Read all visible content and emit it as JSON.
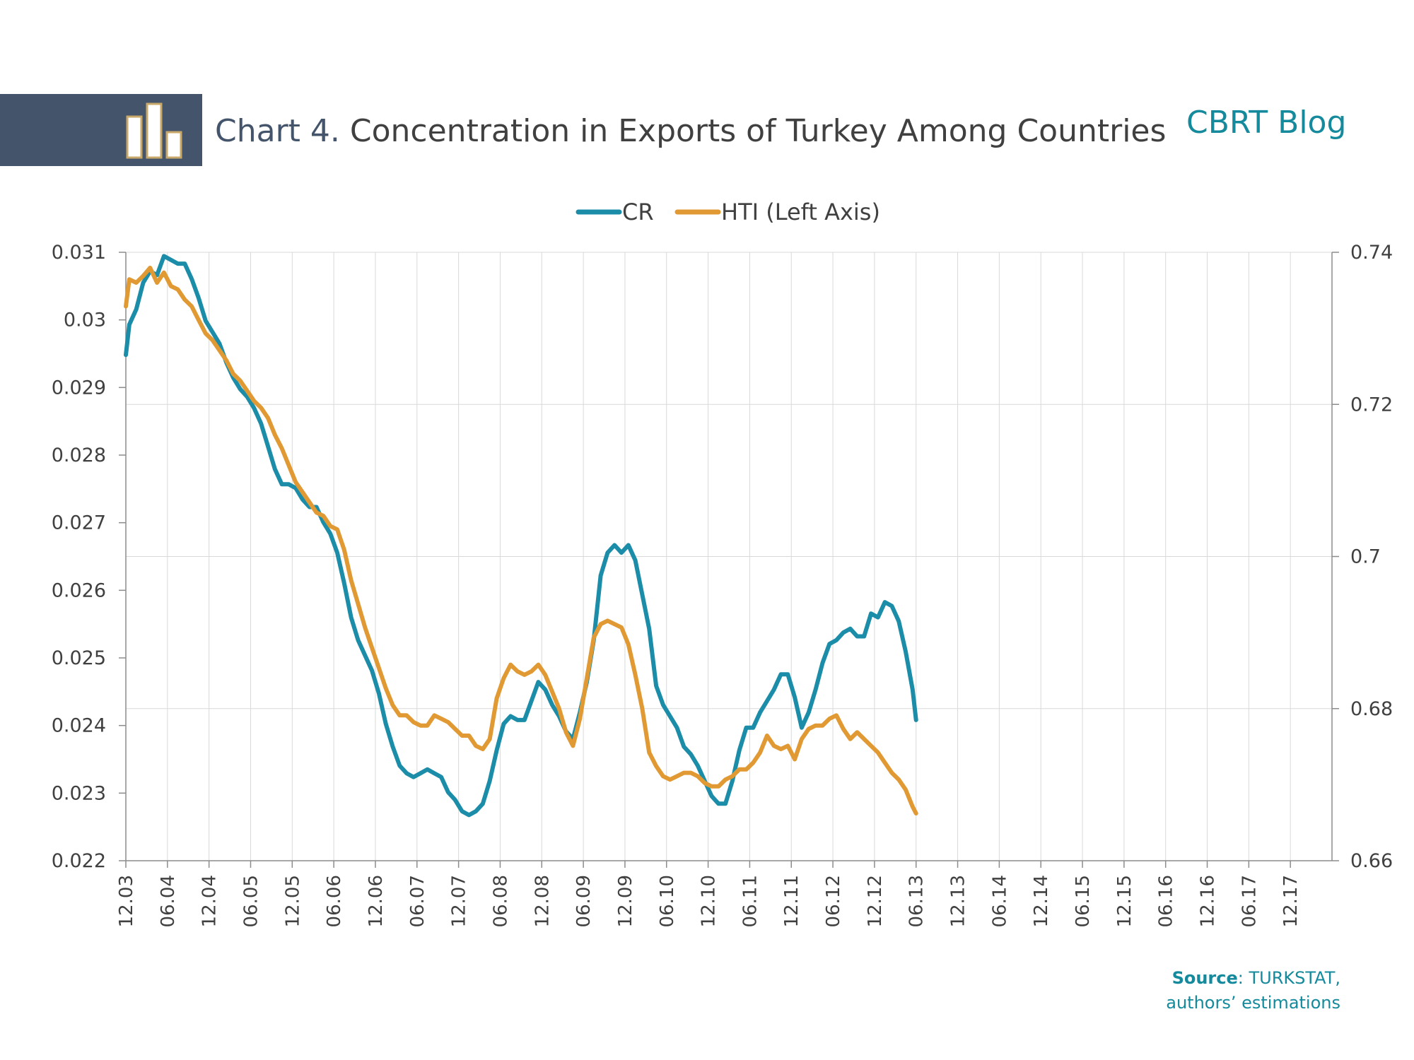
{
  "header": {
    "chart_number": "Chart 4.",
    "title": "Concentration in Exports of Turkey Among Countries",
    "brand": "CBRT Blog"
  },
  "source": {
    "label": "Source",
    "text": ": TURKSTAT,",
    "text2": "authors’ estimations"
  },
  "colors": {
    "cr": "#1b8da8",
    "hti": "#e19a33",
    "header_band": "#44546a",
    "brand": "#148a9c"
  },
  "chart_data": {
    "type": "line",
    "legend": [
      "CR",
      "HTI (Left Axis)"
    ],
    "legend_position": "top",
    "grid": {
      "vertical": true,
      "horizontal": true
    },
    "x_ticks": [
      "12.03",
      "06.04",
      "12.04",
      "06.05",
      "12.05",
      "06.06",
      "12.06",
      "06.07",
      "12.07",
      "06.08",
      "12.08",
      "06.09",
      "12.09",
      "06.10",
      "12.10",
      "06.11",
      "12.11",
      "06.12",
      "12.12",
      "06.13",
      "12.13",
      "06.14",
      "12.14",
      "06.15",
      "12.15",
      "06.16",
      "12.16",
      "06.17",
      "12.17"
    ],
    "y_left": {
      "lim": [
        0.022,
        0.031
      ],
      "ticks": [
        "0.022",
        "0.023",
        "0.024",
        "0.025",
        "0.026",
        "0.027",
        "0.028",
        "0.029",
        "0.03",
        "0.031"
      ]
    },
    "y_right": {
      "lim": [
        0.66,
        0.74
      ],
      "ticks": [
        "0.66",
        "0.68",
        "0.7",
        "0.72",
        "0.74"
      ]
    },
    "series": [
      {
        "name": "CR",
        "axis": "right",
        "points": [
          [
            0,
            0.7265
          ],
          [
            0.5,
            0.7305
          ],
          [
            1.5,
            0.7325
          ],
          [
            2.5,
            0.736
          ],
          [
            3.5,
            0.7375
          ],
          [
            4.5,
            0.737
          ],
          [
            5.5,
            0.7395
          ],
          [
            6.5,
            0.739
          ],
          [
            7.5,
            0.7385
          ],
          [
            8.5,
            0.7385
          ],
          [
            9.5,
            0.7365
          ],
          [
            10.5,
            0.734
          ],
          [
            11.5,
            0.731
          ],
          [
            12.5,
            0.7295
          ],
          [
            13.5,
            0.728
          ],
          [
            14.5,
            0.7255
          ],
          [
            15.5,
            0.7235
          ],
          [
            16.5,
            0.722
          ],
          [
            17.5,
            0.721
          ],
          [
            18.5,
            0.7195
          ],
          [
            19.5,
            0.7175
          ],
          [
            20.5,
            0.7145
          ],
          [
            21.5,
            0.7115
          ],
          [
            22.5,
            0.7095
          ],
          [
            23.5,
            0.7095
          ],
          [
            24.5,
            0.709
          ],
          [
            25.5,
            0.7075
          ],
          [
            26.5,
            0.7065
          ],
          [
            27.5,
            0.7065
          ],
          [
            28.5,
            0.7045
          ],
          [
            29.5,
            0.703
          ],
          [
            30.5,
            0.7005
          ],
          [
            31.5,
            0.6965
          ],
          [
            32.5,
            0.692
          ],
          [
            33.5,
            0.689
          ],
          [
            34.5,
            0.687
          ],
          [
            35.5,
            0.685
          ],
          [
            36.5,
            0.682
          ],
          [
            37.5,
            0.678
          ],
          [
            38.5,
            0.675
          ],
          [
            39.5,
            0.6725
          ],
          [
            40.5,
            0.6715
          ],
          [
            41.5,
            0.671
          ],
          [
            42.5,
            0.6715
          ],
          [
            43.5,
            0.672
          ],
          [
            44.5,
            0.6715
          ],
          [
            45.5,
            0.671
          ],
          [
            46.5,
            0.669
          ],
          [
            47.5,
            0.668
          ],
          [
            48.5,
            0.6665
          ],
          [
            49.5,
            0.666
          ],
          [
            50.5,
            0.6665
          ],
          [
            51.5,
            0.6675
          ],
          [
            52.5,
            0.6705
          ],
          [
            53.5,
            0.6745
          ],
          [
            54.5,
            0.678
          ],
          [
            55.5,
            0.679
          ],
          [
            56.5,
            0.6785
          ],
          [
            57.5,
            0.6785
          ],
          [
            58.5,
            0.681
          ],
          [
            59.5,
            0.6835
          ],
          [
            60.5,
            0.6825
          ],
          [
            61.5,
            0.6805
          ],
          [
            62.5,
            0.679
          ],
          [
            63.5,
            0.677
          ],
          [
            64.5,
            0.676
          ],
          [
            65.5,
            0.6795
          ],
          [
            66.5,
            0.6835
          ],
          [
            67.5,
            0.689
          ],
          [
            68.5,
            0.6975
          ],
          [
            69.5,
            0.7005
          ],
          [
            70.5,
            0.7015
          ],
          [
            71.5,
            0.7005
          ],
          [
            72.5,
            0.7015
          ],
          [
            73.5,
            0.6995
          ],
          [
            74.5,
            0.695
          ],
          [
            75.5,
            0.6905
          ],
          [
            76.5,
            0.683
          ],
          [
            77.5,
            0.6805
          ],
          [
            78.5,
            0.679
          ],
          [
            79.5,
            0.6775
          ],
          [
            80.5,
            0.675
          ],
          [
            81.5,
            0.674
          ],
          [
            82.5,
            0.6725
          ],
          [
            83.5,
            0.6705
          ],
          [
            84.5,
            0.6685
          ],
          [
            85.5,
            0.6675
          ],
          [
            86.5,
            0.6675
          ],
          [
            87.5,
            0.6705
          ],
          [
            88.5,
            0.6745
          ],
          [
            89.5,
            0.6775
          ],
          [
            90.5,
            0.6775
          ],
          [
            91.5,
            0.6795
          ],
          [
            92.5,
            0.681
          ],
          [
            93.5,
            0.6825
          ],
          [
            94.5,
            0.6845
          ],
          [
            95.5,
            0.6845
          ],
          [
            96.5,
            0.6815
          ],
          [
            97.5,
            0.6775
          ],
          [
            98.5,
            0.6795
          ],
          [
            99.5,
            0.6825
          ],
          [
            100.5,
            0.686
          ],
          [
            101.5,
            0.6885
          ],
          [
            102.5,
            0.689
          ],
          [
            103.5,
            0.69
          ],
          [
            104.5,
            0.6905
          ],
          [
            105.5,
            0.6895
          ],
          [
            106.5,
            0.6895
          ],
          [
            107.5,
            0.6925
          ],
          [
            108.5,
            0.692
          ],
          [
            109.5,
            0.694
          ],
          [
            110.5,
            0.6935
          ],
          [
            111.5,
            0.6915
          ],
          [
            112.5,
            0.6875
          ],
          [
            113.5,
            0.6825
          ],
          [
            114,
            0.6785
          ]
        ]
      },
      {
        "name": "HTI (Left Axis)",
        "axis": "left",
        "points": [
          [
            0,
            0.0302
          ],
          [
            0.5,
            0.0306
          ],
          [
            1.5,
            0.03055
          ],
          [
            2.5,
            0.03065
          ],
          [
            3.5,
            0.03077
          ],
          [
            4.5,
            0.03055
          ],
          [
            5.5,
            0.0307
          ],
          [
            6.5,
            0.0305
          ],
          [
            7.5,
            0.03045
          ],
          [
            8.5,
            0.0303
          ],
          [
            9.5,
            0.0302
          ],
          [
            10.5,
            0.03
          ],
          [
            11.5,
            0.0298
          ],
          [
            12.5,
            0.0297
          ],
          [
            13.5,
            0.02955
          ],
          [
            14.5,
            0.0294
          ],
          [
            15.5,
            0.0292
          ],
          [
            16.5,
            0.0291
          ],
          [
            17.5,
            0.02895
          ],
          [
            18.5,
            0.0288
          ],
          [
            19.5,
            0.0287
          ],
          [
            20.5,
            0.02855
          ],
          [
            21.5,
            0.0283
          ],
          [
            22.5,
            0.0281
          ],
          [
            23.5,
            0.02785
          ],
          [
            24.5,
            0.0276
          ],
          [
            25.5,
            0.02745
          ],
          [
            26.5,
            0.0273
          ],
          [
            27.5,
            0.02715
          ],
          [
            28.5,
            0.0271
          ],
          [
            29.5,
            0.02695
          ],
          [
            30.5,
            0.0269
          ],
          [
            31.5,
            0.0266
          ],
          [
            32.5,
            0.02615
          ],
          [
            33.5,
            0.0258
          ],
          [
            34.5,
            0.02545
          ],
          [
            35.5,
            0.02515
          ],
          [
            36.5,
            0.02485
          ],
          [
            37.5,
            0.02455
          ],
          [
            38.5,
            0.0243
          ],
          [
            39.5,
            0.02415
          ],
          [
            40.5,
            0.02415
          ],
          [
            41.5,
            0.02405
          ],
          [
            42.5,
            0.024
          ],
          [
            43.5,
            0.024
          ],
          [
            44.5,
            0.02415
          ],
          [
            45.5,
            0.0241
          ],
          [
            46.5,
            0.02405
          ],
          [
            47.5,
            0.02395
          ],
          [
            48.5,
            0.02385
          ],
          [
            49.5,
            0.02385
          ],
          [
            50.5,
            0.0237
          ],
          [
            51.5,
            0.02365
          ],
          [
            52.5,
            0.0238
          ],
          [
            53.5,
            0.0244
          ],
          [
            54.5,
            0.0247
          ],
          [
            55.5,
            0.0249
          ],
          [
            56.5,
            0.0248
          ],
          [
            57.5,
            0.02475
          ],
          [
            58.5,
            0.0248
          ],
          [
            59.5,
            0.0249
          ],
          [
            60.5,
            0.02475
          ],
          [
            61.5,
            0.0245
          ],
          [
            62.5,
            0.02425
          ],
          [
            63.5,
            0.0239
          ],
          [
            64.5,
            0.0237
          ],
          [
            65.5,
            0.0241
          ],
          [
            66.5,
            0.0247
          ],
          [
            67.5,
            0.0253
          ],
          [
            68.5,
            0.0255
          ],
          [
            69.5,
            0.02555
          ],
          [
            70.5,
            0.0255
          ],
          [
            71.5,
            0.02545
          ],
          [
            72.5,
            0.0252
          ],
          [
            73.5,
            0.02475
          ],
          [
            74.5,
            0.02425
          ],
          [
            75.5,
            0.0236
          ],
          [
            76.5,
            0.0234
          ],
          [
            77.5,
            0.02325
          ],
          [
            78.5,
            0.0232
          ],
          [
            79.5,
            0.02325
          ],
          [
            80.5,
            0.0233
          ],
          [
            81.5,
            0.0233
          ],
          [
            82.5,
            0.02325
          ],
          [
            83.5,
            0.02315
          ],
          [
            84.5,
            0.0231
          ],
          [
            85.5,
            0.0231
          ],
          [
            86.5,
            0.0232
          ],
          [
            87.5,
            0.02325
          ],
          [
            88.5,
            0.02335
          ],
          [
            89.5,
            0.02335
          ],
          [
            90.5,
            0.02345
          ],
          [
            91.5,
            0.0236
          ],
          [
            92.5,
            0.02385
          ],
          [
            93.5,
            0.0237
          ],
          [
            94.5,
            0.02365
          ],
          [
            95.5,
            0.0237
          ],
          [
            96.5,
            0.0235
          ],
          [
            97.5,
            0.0238
          ],
          [
            98.5,
            0.02395
          ],
          [
            99.5,
            0.024
          ],
          [
            100.5,
            0.024
          ],
          [
            101.5,
            0.0241
          ],
          [
            102.5,
            0.02415
          ],
          [
            103.5,
            0.02395
          ],
          [
            104.5,
            0.0238
          ],
          [
            105.5,
            0.0239
          ],
          [
            106.5,
            0.0238
          ],
          [
            107.5,
            0.0237
          ],
          [
            108.5,
            0.0236
          ],
          [
            109.5,
            0.02345
          ],
          [
            110.5,
            0.0233
          ],
          [
            111.5,
            0.0232
          ],
          [
            112.5,
            0.02305
          ],
          [
            113.5,
            0.0228
          ],
          [
            114,
            0.0227
          ]
        ]
      }
    ]
  }
}
